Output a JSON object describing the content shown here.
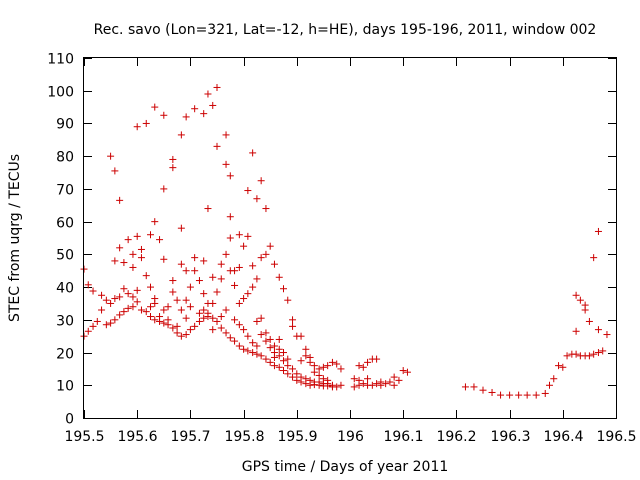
{
  "chart_data": {
    "type": "scatter",
    "title": "Rec. savo (Lon=321, Lat=-12, h=HE), days 195-196, 2011, window 002",
    "xlabel": "GPS time / Days of year 2011",
    "ylabel": "STEC from uqrg / TECUs",
    "xlim": [
      195.5,
      196.5
    ],
    "ylim": [
      0,
      110
    ],
    "x_ticks": [
      "195.5",
      "195.6",
      "195.7",
      "195.8",
      "195.9",
      "196",
      "196.1",
      "196.2",
      "196.3",
      "196.4",
      "196.5"
    ],
    "y_ticks": [
      "0",
      "10",
      "20",
      "30",
      "40",
      "50",
      "60",
      "70",
      "80",
      "90",
      "100",
      "110"
    ],
    "grid": false,
    "marker": "plus",
    "colors": {
      "marker": "#cc0000",
      "axis": "#000000"
    },
    "series": [
      {
        "points": [
          [
            195.5,
            45.5
          ],
          [
            195.508,
            40.7
          ],
          [
            195.5,
            25.0
          ],
          [
            195.508,
            26.5
          ],
          [
            195.517,
            28.0
          ],
          [
            195.525,
            29.5
          ],
          [
            195.517,
            38.8
          ],
          [
            195.533,
            37.5
          ],
          [
            195.542,
            36.0
          ],
          [
            195.55,
            35.0
          ],
          [
            195.558,
            36.5
          ],
          [
            195.567,
            37.0
          ],
          [
            195.533,
            33.0
          ],
          [
            195.542,
            28.5
          ],
          [
            195.55,
            29.0
          ],
          [
            195.558,
            30.0
          ],
          [
            195.567,
            31.5
          ],
          [
            195.575,
            32.5
          ],
          [
            195.583,
            33.5
          ],
          [
            195.592,
            34.0
          ],
          [
            195.6,
            35.5
          ],
          [
            195.608,
            33.0
          ],
          [
            195.617,
            32.5
          ],
          [
            195.625,
            31.0
          ],
          [
            195.633,
            30.0
          ],
          [
            195.642,
            29.5
          ],
          [
            195.65,
            29.0
          ],
          [
            195.658,
            28.5
          ],
          [
            195.667,
            27.5
          ],
          [
            195.675,
            26.0
          ],
          [
            195.683,
            25.0
          ],
          [
            195.692,
            25.5
          ],
          [
            195.7,
            27.0
          ],
          [
            195.708,
            28.0
          ],
          [
            195.717,
            29.5
          ],
          [
            195.725,
            30.5
          ],
          [
            195.733,
            31.0
          ],
          [
            195.742,
            30.5
          ],
          [
            195.75,
            29.5
          ],
          [
            195.758,
            27.5
          ],
          [
            195.767,
            26.0
          ],
          [
            195.775,
            24.5
          ],
          [
            195.783,
            23.5
          ],
          [
            195.792,
            22.0
          ],
          [
            195.8,
            21.0
          ],
          [
            195.808,
            20.5
          ],
          [
            195.817,
            20.0
          ],
          [
            195.825,
            19.5
          ],
          [
            195.833,
            19.0
          ],
          [
            195.842,
            18.0
          ],
          [
            195.85,
            17.0
          ],
          [
            195.858,
            16.0
          ],
          [
            195.867,
            15.5
          ],
          [
            195.875,
            14.5
          ],
          [
            195.883,
            13.5
          ],
          [
            195.892,
            12.5
          ],
          [
            195.9,
            11.5
          ],
          [
            195.908,
            11.0
          ],
          [
            195.917,
            10.5
          ],
          [
            195.925,
            10.0
          ],
          [
            195.933,
            10.2
          ],
          [
            195.942,
            10.0
          ],
          [
            195.95,
            9.8
          ],
          [
            195.958,
            9.8
          ],
          [
            195.967,
            9.5
          ],
          [
            195.975,
            9.5
          ],
          [
            195.983,
            10.0
          ],
          [
            195.983,
            15.0
          ],
          [
            195.975,
            16.5
          ],
          [
            195.967,
            17.0
          ],
          [
            195.958,
            16.0
          ],
          [
            195.95,
            15.5
          ],
          [
            195.942,
            15.0
          ],
          [
            195.933,
            16.0
          ],
          [
            195.925,
            18.5
          ],
          [
            195.917,
            19.0
          ],
          [
            195.908,
            17.5
          ],
          [
            195.9,
            25.0
          ],
          [
            195.892,
            30.0
          ],
          [
            195.883,
            36.0
          ],
          [
            195.875,
            39.5
          ],
          [
            195.867,
            43.0
          ],
          [
            195.858,
            47.0
          ],
          [
            195.85,
            52.5
          ],
          [
            195.842,
            50.0
          ],
          [
            195.833,
            49.0
          ],
          [
            195.825,
            42.5
          ],
          [
            195.817,
            40.0
          ],
          [
            195.808,
            38.0
          ],
          [
            195.8,
            36.5
          ],
          [
            195.792,
            35.0
          ],
          [
            195.783,
            40.5
          ],
          [
            195.775,
            45.0
          ],
          [
            195.767,
            50.0
          ],
          [
            195.758,
            42.5
          ],
          [
            195.75,
            38.5
          ],
          [
            195.742,
            35.0
          ],
          [
            195.733,
            32.0
          ],
          [
            195.725,
            38.0
          ],
          [
            195.717,
            42.0
          ],
          [
            195.708,
            45.0
          ],
          [
            195.7,
            40.0
          ],
          [
            195.692,
            36.0
          ],
          [
            195.683,
            33.0
          ],
          [
            195.675,
            36.0
          ],
          [
            195.667,
            38.5
          ],
          [
            195.658,
            34.0
          ],
          [
            195.65,
            33.0
          ],
          [
            195.642,
            31.0
          ],
          [
            195.633,
            36.5
          ],
          [
            195.625,
            40.0
          ],
          [
            195.617,
            43.5
          ],
          [
            195.608,
            49.0
          ],
          [
            195.6,
            55.5
          ],
          [
            195.592,
            46.0
          ],
          [
            195.583,
            54.5
          ],
          [
            195.575,
            47.5
          ],
          [
            195.567,
            52.0
          ],
          [
            195.558,
            48.0
          ],
          [
            195.55,
            80.0
          ],
          [
            195.558,
            75.5
          ],
          [
            195.567,
            66.5
          ],
          [
            195.6,
            89.0
          ],
          [
            195.617,
            90.0
          ],
          [
            195.633,
            95.0
          ],
          [
            195.65,
            92.5
          ],
          [
            195.633,
            60.0
          ],
          [
            195.65,
            70.0
          ],
          [
            195.667,
            79.0
          ],
          [
            195.667,
            76.5
          ],
          [
            195.683,
            86.5
          ],
          [
            195.692,
            92.0
          ],
          [
            195.708,
            94.5
          ],
          [
            195.725,
            93.0
          ],
          [
            195.733,
            99.0
          ],
          [
            195.75,
            101.0
          ],
          [
            195.742,
            95.5
          ],
          [
            195.75,
            83.0
          ],
          [
            195.767,
            86.5
          ],
          [
            195.767,
            77.5
          ],
          [
            195.775,
            74.0
          ],
          [
            195.733,
            64.0
          ],
          [
            195.683,
            58.0
          ],
          [
            195.775,
            61.5
          ],
          [
            195.792,
            56.0
          ],
          [
            195.808,
            69.5
          ],
          [
            195.817,
            81.0
          ],
          [
            195.833,
            72.5
          ],
          [
            195.842,
            64.0
          ],
          [
            195.825,
            67.0
          ],
          [
            195.808,
            55.5
          ],
          [
            195.8,
            52.5
          ],
          [
            195.775,
            55.0
          ],
          [
            195.758,
            47.0
          ],
          [
            195.742,
            43.0
          ],
          [
            195.725,
            48.0
          ],
          [
            195.708,
            49.0
          ],
          [
            195.692,
            45.0
          ],
          [
            195.683,
            47.0
          ],
          [
            195.667,
            42.0
          ],
          [
            195.65,
            48.5
          ],
          [
            195.642,
            54.5
          ],
          [
            195.625,
            56.0
          ],
          [
            195.608,
            51.5
          ],
          [
            195.592,
            50.0
          ],
          [
            195.575,
            39.5
          ],
          [
            195.583,
            38.0
          ],
          [
            195.592,
            37.0
          ],
          [
            195.6,
            39.0
          ],
          [
            195.625,
            34.0
          ],
          [
            195.633,
            35.0
          ],
          [
            195.658,
            30.0
          ],
          [
            195.675,
            28.0
          ],
          [
            195.692,
            30.5
          ],
          [
            195.7,
            34.0
          ],
          [
            195.717,
            32.0
          ],
          [
            195.725,
            33.0
          ],
          [
            195.733,
            35.0
          ],
          [
            195.742,
            27.0
          ],
          [
            195.758,
            31.0
          ],
          [
            195.767,
            33.0
          ],
          [
            195.783,
            30.0
          ],
          [
            195.792,
            28.5
          ],
          [
            195.8,
            27.0
          ],
          [
            195.808,
            25.0
          ],
          [
            195.817,
            23.0
          ],
          [
            195.825,
            22.0
          ],
          [
            195.833,
            25.5
          ],
          [
            195.842,
            23.5
          ],
          [
            195.85,
            21.5
          ],
          [
            195.858,
            20.0
          ],
          [
            195.867,
            19.0
          ],
          [
            195.875,
            17.5
          ],
          [
            195.883,
            16.0
          ],
          [
            195.892,
            15.0
          ],
          [
            195.9,
            13.5
          ],
          [
            195.908,
            12.5
          ],
          [
            195.917,
            12.0
          ],
          [
            195.925,
            11.5
          ],
          [
            195.933,
            11.0
          ],
          [
            195.942,
            11.0
          ],
          [
            195.95,
            10.5
          ],
          [
            195.958,
            10.5
          ],
          [
            195.967,
            10.0
          ],
          [
            195.858,
            22.0
          ],
          [
            195.867,
            24.0
          ],
          [
            195.875,
            20.0
          ],
          [
            195.883,
            18.0
          ],
          [
            195.892,
            28.0
          ],
          [
            195.908,
            25.0
          ],
          [
            195.917,
            21.0
          ],
          [
            195.925,
            17.0
          ],
          [
            195.933,
            14.0
          ],
          [
            195.942,
            13.0
          ],
          [
            195.95,
            12.0
          ],
          [
            195.958,
            11.5
          ],
          [
            195.783,
            45.0
          ],
          [
            195.792,
            46.0
          ],
          [
            195.817,
            46.5
          ],
          [
            195.825,
            29.5
          ],
          [
            195.833,
            30.5
          ],
          [
            195.842,
            26.0
          ],
          [
            195.85,
            24.0
          ],
          [
            195.858,
            18.5
          ],
          [
            195.867,
            21.0
          ],
          [
            196.008,
            12.0
          ],
          [
            196.017,
            11.5
          ],
          [
            196.025,
            10.5
          ],
          [
            196.033,
            10.0
          ],
          [
            196.042,
            10.0
          ],
          [
            196.05,
            10.5
          ],
          [
            196.058,
            10.0
          ],
          [
            196.067,
            10.5
          ],
          [
            196.075,
            11.0
          ],
          [
            196.083,
            10.0
          ],
          [
            196.092,
            11.5
          ],
          [
            196.1,
            14.5
          ],
          [
            196.108,
            14.0
          ],
          [
            196.017,
            16.0
          ],
          [
            196.025,
            15.5
          ],
          [
            196.033,
            17.0
          ],
          [
            196.042,
            18.0
          ],
          [
            196.05,
            18.0
          ],
          [
            196.008,
            9.5
          ],
          [
            196.017,
            10.0
          ],
          [
            196.033,
            12.0
          ],
          [
            196.058,
            11.0
          ],
          [
            196.083,
            12.5
          ],
          [
            196.217,
            9.5
          ],
          [
            196.233,
            9.5
          ],
          [
            196.25,
            8.5
          ],
          [
            196.267,
            7.8
          ],
          [
            196.283,
            7.0
          ],
          [
            196.3,
            7.0
          ],
          [
            196.317,
            7.0
          ],
          [
            196.333,
            7.0
          ],
          [
            196.35,
            7.0
          ],
          [
            196.367,
            7.5
          ],
          [
            196.375,
            10.0
          ],
          [
            196.383,
            12.0
          ],
          [
            196.392,
            16.0
          ],
          [
            196.4,
            15.5
          ],
          [
            196.408,
            19.0
          ],
          [
            196.417,
            19.5
          ],
          [
            196.425,
            19.5
          ],
          [
            196.433,
            19.0
          ],
          [
            196.442,
            19.0
          ],
          [
            196.45,
            19.0
          ],
          [
            196.458,
            19.5
          ],
          [
            196.467,
            20.0
          ],
          [
            196.475,
            20.5
          ],
          [
            196.425,
            37.5
          ],
          [
            196.433,
            36.0
          ],
          [
            196.442,
            34.5
          ],
          [
            196.442,
            33.0
          ],
          [
            196.425,
            26.5
          ],
          [
            196.45,
            29.5
          ],
          [
            196.458,
            49.0
          ],
          [
            196.467,
            57.0
          ],
          [
            196.467,
            27.0
          ],
          [
            196.483,
            25.5
          ]
        ]
      }
    ]
  }
}
